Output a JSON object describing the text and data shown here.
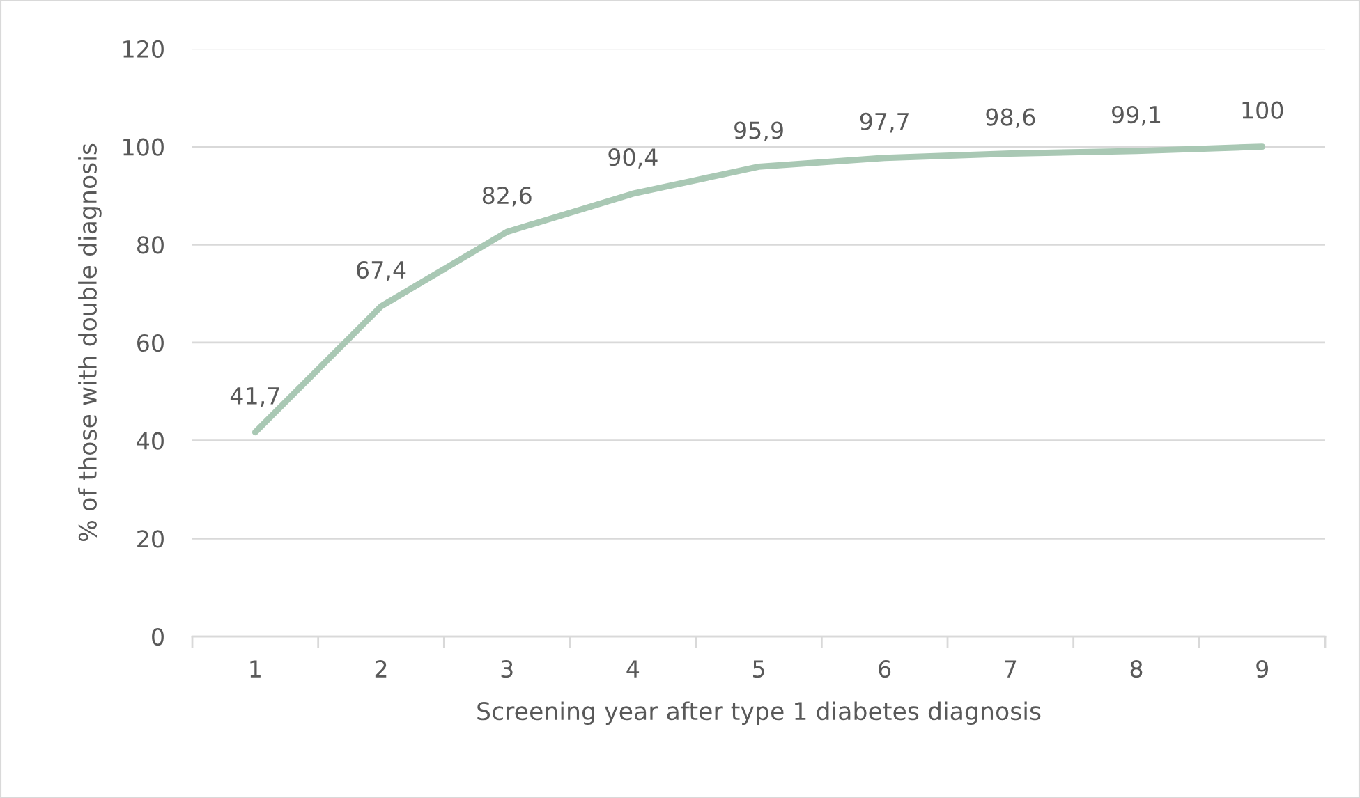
{
  "chart_data": {
    "type": "line",
    "xlabel": "Screening year after type 1 diabetes diagnosis",
    "ylabel": "% of those with double diagnosis",
    "categories": [
      "1",
      "2",
      "3",
      "4",
      "5",
      "6",
      "7",
      "8",
      "9"
    ],
    "series": [
      {
        "color": "#a9c8b4",
        "values": [
          41.7,
          67.4,
          82.6,
          90.4,
          95.9,
          97.7,
          98.6,
          99.1,
          100
        ],
        "value_labels": [
          "41,7",
          "67,4",
          "82,6",
          "90,4",
          "95,9",
          "97,7",
          "98,6",
          "99,1",
          "100"
        ]
      }
    ],
    "ylim": [
      0,
      120
    ],
    "yticks": [
      0,
      20,
      40,
      60,
      80,
      100,
      120
    ],
    "grid": "y",
    "line_style": "solid",
    "marker": "none"
  }
}
